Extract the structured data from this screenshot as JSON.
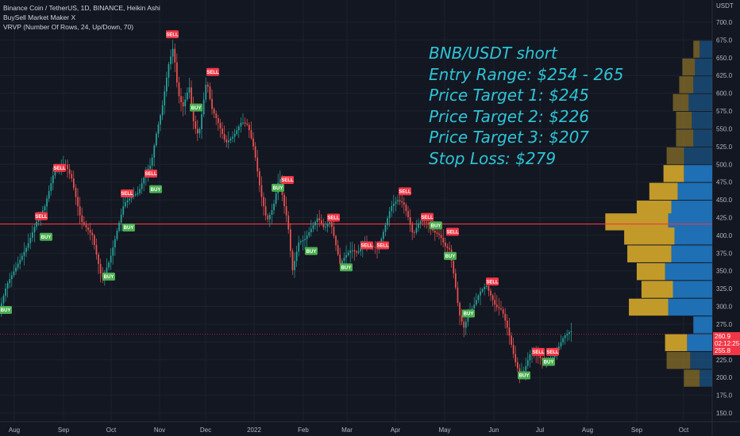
{
  "legend": {
    "line1": "Binance Coin / TetherUS, 1D, BINANCE, Heikin Ashi",
    "line2": "BuySell Market Maker X",
    "line3": "VRVP (Number Of Rows, 24, Up/Down, 70)"
  },
  "overlay": {
    "title": "BNB/USDT short",
    "entry": "Entry Range: $254 - 265",
    "pt1": "Price Target 1: $245",
    "pt2": "Price Target 2: $226",
    "pt3": "Price Target 3: $207",
    "stop": "Stop Loss: $279"
  },
  "price_labels": {
    "current": "260.9",
    "countdown": "02:12:25",
    "lower": "255.8"
  },
  "chart_data": {
    "type": "candlestick",
    "title": "Binance Coin / TetherUS, 1D, BINANCE, Heikin Ashi",
    "axis_currency": "USDT",
    "ylim": [
      138,
      720
    ],
    "y_ticks": [
      150,
      175,
      200,
      225,
      250,
      275,
      300,
      325,
      350,
      375,
      400,
      425,
      450,
      475,
      500,
      525,
      550,
      575,
      600,
      625,
      650,
      675,
      700
    ],
    "x_ticks": [
      "Aug",
      "Sep",
      "Oct",
      "Nov",
      "Dec",
      "2022",
      "Feb",
      "Mar",
      "Apr",
      "May",
      "Jun",
      "Jul",
      "Aug",
      "Sep",
      "Oct"
    ],
    "horizontal_line": 416,
    "dotted_line": 260.9,
    "price_path": [
      [
        0,
        290
      ],
      [
        10,
        330
      ],
      [
        22,
        355
      ],
      [
        36,
        385
      ],
      [
        48,
        420
      ],
      [
        58,
        440
      ],
      [
        70,
        490
      ],
      [
        84,
        500
      ],
      [
        92,
        480
      ],
      [
        104,
        420
      ],
      [
        118,
        400
      ],
      [
        130,
        338
      ],
      [
        140,
        365
      ],
      [
        150,
        410
      ],
      [
        158,
        445
      ],
      [
        168,
        455
      ],
      [
        176,
        460
      ],
      [
        186,
        490
      ],
      [
        192,
        500
      ],
      [
        198,
        540
      ],
      [
        206,
        580
      ],
      [
        214,
        640
      ],
      [
        220,
        665
      ],
      [
        226,
        600
      ],
      [
        232,
        580
      ],
      [
        240,
        610
      ],
      [
        246,
        555
      ],
      [
        252,
        540
      ],
      [
        262,
        620
      ],
      [
        268,
        580
      ],
      [
        276,
        560
      ],
      [
        286,
        530
      ],
      [
        296,
        540
      ],
      [
        306,
        560
      ],
      [
        314,
        555
      ],
      [
        322,
        520
      ],
      [
        330,
        460
      ],
      [
        338,
        420
      ],
      [
        346,
        440
      ],
      [
        354,
        485
      ],
      [
        358,
        450
      ],
      [
        364,
        420
      ],
      [
        370,
        350
      ],
      [
        378,
        390
      ],
      [
        386,
        395
      ],
      [
        394,
        410
      ],
      [
        402,
        425
      ],
      [
        410,
        410
      ],
      [
        418,
        420
      ],
      [
        424,
        390
      ],
      [
        430,
        360
      ],
      [
        436,
        370
      ],
      [
        444,
        380
      ],
      [
        452,
        375
      ],
      [
        460,
        390
      ],
      [
        470,
        385
      ],
      [
        478,
        380
      ],
      [
        486,
        410
      ],
      [
        494,
        440
      ],
      [
        502,
        450
      ],
      [
        510,
        445
      ],
      [
        516,
        425
      ],
      [
        522,
        400
      ],
      [
        530,
        420
      ],
      [
        540,
        418
      ],
      [
        548,
        405
      ],
      [
        556,
        400
      ],
      [
        562,
        385
      ],
      [
        568,
        380
      ],
      [
        574,
        340
      ],
      [
        580,
        290
      ],
      [
        586,
        270
      ],
      [
        592,
        290
      ],
      [
        598,
        300
      ],
      [
        606,
        320
      ],
      [
        614,
        330
      ],
      [
        620,
        315
      ],
      [
        626,
        300
      ],
      [
        634,
        295
      ],
      [
        642,
        265
      ],
      [
        650,
        225
      ],
      [
        656,
        205
      ],
      [
        662,
        210
      ],
      [
        670,
        235
      ],
      [
        680,
        230
      ],
      [
        688,
        220
      ],
      [
        696,
        225
      ],
      [
        704,
        240
      ],
      [
        712,
        258
      ],
      [
        720,
        265
      ]
    ],
    "signals": [
      {
        "label": "BUY",
        "x": 7,
        "y": 295
      },
      {
        "label": "SELL",
        "x": 52,
        "y": 427
      },
      {
        "label": "BUY",
        "x": 58,
        "y": 398
      },
      {
        "label": "SELL",
        "x": 75,
        "y": 495
      },
      {
        "label": "BUY",
        "x": 137,
        "y": 342
      },
      {
        "label": "SELL",
        "x": 160,
        "y": 459
      },
      {
        "label": "BUY",
        "x": 162,
        "y": 411
      },
      {
        "label": "SELL",
        "x": 190,
        "y": 487
      },
      {
        "label": "BUY",
        "x": 196,
        "y": 465
      },
      {
        "label": "SELL",
        "x": 217,
        "y": 683
      },
      {
        "label": "SELL",
        "x": 268,
        "y": 630
      },
      {
        "label": "BUY",
        "x": 247,
        "y": 580
      },
      {
        "label": "BUY",
        "x": 350,
        "y": 467
      },
      {
        "label": "SELL",
        "x": 362,
        "y": 478
      },
      {
        "label": "SELL",
        "x": 420,
        "y": 425
      },
      {
        "label": "BUY",
        "x": 392,
        "y": 378
      },
      {
        "label": "SELL",
        "x": 462,
        "y": 386
      },
      {
        "label": "SELL",
        "x": 482,
        "y": 386
      },
      {
        "label": "BUY",
        "x": 436,
        "y": 355
      },
      {
        "label": "SELL",
        "x": 510,
        "y": 462
      },
      {
        "label": "SELL",
        "x": 538,
        "y": 426
      },
      {
        "label": "BUY",
        "x": 549,
        "y": 414
      },
      {
        "label": "SELL",
        "x": 570,
        "y": 405
      },
      {
        "label": "BUY",
        "x": 567,
        "y": 371
      },
      {
        "label": "SELL",
        "x": 620,
        "y": 335
      },
      {
        "label": "BUY",
        "x": 590,
        "y": 290
      },
      {
        "label": "SELL",
        "x": 678,
        "y": 236
      },
      {
        "label": "SELL",
        "x": 696,
        "y": 236
      },
      {
        "label": "BUY",
        "x": 660,
        "y": 203
      },
      {
        "label": "BUY",
        "x": 691,
        "y": 222
      }
    ],
    "volume_profile": {
      "row_prices": [
        662,
        637,
        612,
        587,
        562,
        537,
        512,
        487,
        462,
        437,
        419,
        399,
        374,
        349,
        324,
        299,
        274,
        249,
        224,
        199
      ],
      "up": [
        1.0,
        1.0,
        1.0,
        1.0,
        1.0,
        1.0,
        1.0,
        1.0,
        1.0,
        1.0,
        1.0,
        1.0,
        1.0,
        1.0,
        1.0,
        1.0,
        0.0,
        1.0,
        1.0,
        1.0
      ],
      "up_pct": [
        8,
        11,
        12,
        15,
        13,
        12,
        18,
        18,
        22,
        26,
        28,
        24,
        26,
        30,
        25,
        28,
        12,
        16,
        14,
        8
      ],
      "down_pct": [
        4,
        8,
        9,
        10,
        10,
        11,
        11,
        13,
        18,
        22,
        40,
        32,
        28,
        18,
        20,
        25,
        0,
        14,
        15,
        10
      ]
    }
  }
}
